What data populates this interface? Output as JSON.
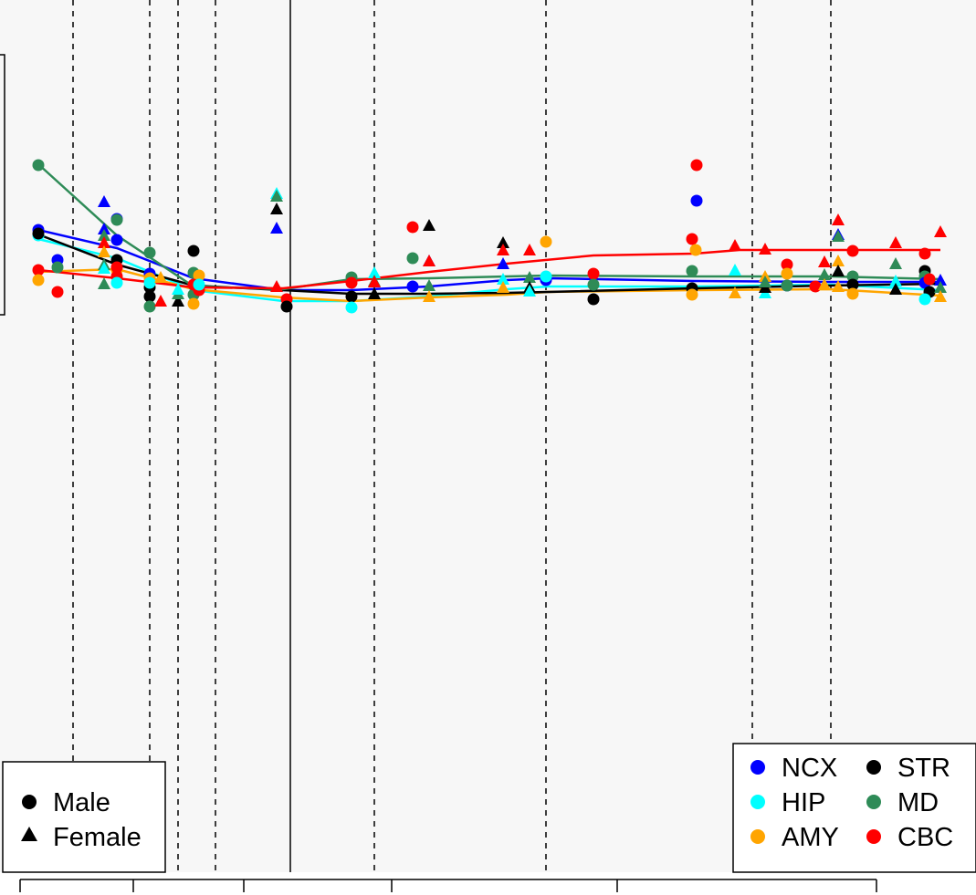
{
  "chart_data": {
    "type": "scatter",
    "title": "",
    "xlabel": "",
    "ylabel": "",
    "grid": false,
    "background": "#f7f7f7",
    "x_divider_positions": [
      80,
      164,
      195,
      236,
      410,
      598,
      824,
      910
    ],
    "x_solid_line": 318,
    "x_axis_ticks": [
      22,
      146,
      267,
      429,
      676,
      960
    ],
    "regions": [
      {
        "name": "NCX",
        "color": "#0000ff"
      },
      {
        "name": "HIP",
        "color": "#00ffff"
      },
      {
        "name": "AMY",
        "color": "#ffa500"
      },
      {
        "name": "STR",
        "color": "#000000"
      },
      {
        "name": "MD",
        "color": "#2e8b57"
      },
      {
        "name": "CBC",
        "color": "#ff0000"
      }
    ],
    "sexes": [
      {
        "name": "Male",
        "shape": "circle"
      },
      {
        "name": "Female",
        "shape": "triangle"
      }
    ],
    "trend_lines": [
      {
        "region": "NCX",
        "points": [
          [
            42,
            252
          ],
          [
            128,
            272
          ],
          [
            212,
            305
          ],
          [
            310,
            318
          ],
          [
            385,
            318
          ],
          [
            470,
            314
          ],
          [
            555,
            307
          ],
          [
            600,
            305
          ],
          [
            760,
            308
          ],
          [
            910,
            309
          ],
          [
            1030,
            309
          ]
        ]
      },
      {
        "region": "HIP",
        "points": [
          [
            42,
            262
          ],
          [
            128,
            283
          ],
          [
            212,
            318
          ],
          [
            310,
            330
          ],
          [
            385,
            330
          ],
          [
            470,
            325
          ],
          [
            555,
            317
          ],
          [
            600,
            314
          ],
          [
            760,
            314
          ],
          [
            910,
            312
          ],
          [
            1030,
            318
          ]
        ]
      },
      {
        "region": "AMY",
        "points": [
          [
            42,
            298
          ],
          [
            128,
            295
          ],
          [
            212,
            317
          ],
          [
            310,
            326
          ],
          [
            385,
            330
          ],
          [
            470,
            326
          ],
          [
            555,
            323
          ],
          [
            600,
            320
          ],
          [
            760,
            318
          ],
          [
            910,
            317
          ],
          [
            1030,
            324
          ]
        ]
      },
      {
        "region": "STR",
        "points": [
          [
            42,
            257
          ],
          [
            128,
            290
          ],
          [
            212,
            313
          ],
          [
            310,
            318
          ],
          [
            385,
            322
          ],
          [
            470,
            322
          ],
          [
            555,
            321
          ],
          [
            600,
            320
          ],
          [
            760,
            316
          ],
          [
            910,
            313
          ],
          [
            1030,
            311
          ]
        ]
      },
      {
        "region": "MD",
        "points": [
          [
            42,
            180
          ],
          [
            128,
            258
          ],
          [
            212,
            314
          ],
          [
            310,
            317
          ],
          [
            385,
            306
          ],
          [
            470,
            305
          ],
          [
            555,
            303
          ],
          [
            600,
            302
          ],
          [
            760,
            303
          ],
          [
            910,
            303
          ],
          [
            1030,
            306
          ]
        ]
      },
      {
        "region": "CBC",
        "points": [
          [
            42,
            296
          ],
          [
            128,
            305
          ],
          [
            212,
            315
          ],
          [
            310,
            316
          ],
          [
            385,
            308
          ],
          [
            470,
            298
          ],
          [
            555,
            289
          ],
          [
            650,
            280
          ],
          [
            760,
            278
          ],
          [
            810,
            274
          ],
          [
            1030,
            274
          ]
        ]
      }
    ],
    "points": [
      {
        "region": "MD",
        "sex": "Male",
        "x": 42,
        "y": 181
      },
      {
        "region": "NCX",
        "sex": "Male",
        "x": 42,
        "y": 252
      },
      {
        "region": "HIP",
        "sex": "Male",
        "x": 42,
        "y": 258
      },
      {
        "region": "STR",
        "sex": "Male",
        "x": 42,
        "y": 256
      },
      {
        "region": "CBC",
        "sex": "Male",
        "x": 42,
        "y": 296
      },
      {
        "region": "AMY",
        "sex": "Male",
        "x": 42,
        "y": 307
      },
      {
        "region": "NCX",
        "sex": "Male",
        "x": 63,
        "y": 285
      },
      {
        "region": "MD",
        "sex": "Male",
        "x": 63,
        "y": 293
      },
      {
        "region": "CBC",
        "sex": "Male",
        "x": 63,
        "y": 320
      },
      {
        "region": "NCX",
        "sex": "Female",
        "x": 114,
        "y": 222
      },
      {
        "region": "NCX",
        "sex": "Female",
        "x": 114,
        "y": 252
      },
      {
        "region": "MD",
        "sex": "Female",
        "x": 114,
        "y": 259
      },
      {
        "region": "CBC",
        "sex": "Female",
        "x": 114,
        "y": 267
      },
      {
        "region": "AMY",
        "sex": "Female",
        "x": 114,
        "y": 277
      },
      {
        "region": "MD",
        "sex": "Female",
        "x": 114,
        "y": 291
      },
      {
        "region": "HIP",
        "sex": "Female",
        "x": 114,
        "y": 295
      },
      {
        "region": "MD",
        "sex": "Female",
        "x": 114,
        "y": 312
      },
      {
        "region": "NCX",
        "sex": "Male",
        "x": 128,
        "y": 240
      },
      {
        "region": "MD",
        "sex": "Male",
        "x": 128,
        "y": 241
      },
      {
        "region": "NCX",
        "sex": "Male",
        "x": 128,
        "y": 263
      },
      {
        "region": "STR",
        "sex": "Male",
        "x": 128,
        "y": 285
      },
      {
        "region": "AMY",
        "sex": "Male",
        "x": 128,
        "y": 296
      },
      {
        "region": "CBC",
        "sex": "Male",
        "x": 128,
        "y": 303
      },
      {
        "region": "HIP",
        "sex": "Male",
        "x": 128,
        "y": 310
      },
      {
        "region": "CBC",
        "sex": "Male",
        "x": 128,
        "y": 293
      },
      {
        "region": "MD",
        "sex": "Male",
        "x": 164,
        "y": 277
      },
      {
        "region": "NCX",
        "sex": "Male",
        "x": 164,
        "y": 300
      },
      {
        "region": "STR",
        "sex": "Male",
        "x": 164,
        "y": 315
      },
      {
        "region": "STR",
        "sex": "Male",
        "x": 164,
        "y": 325
      },
      {
        "region": "MD",
        "sex": "Male",
        "x": 164,
        "y": 336
      },
      {
        "region": "AMY",
        "sex": "Male",
        "x": 164,
        "y": 305
      },
      {
        "region": "HIP",
        "sex": "Male",
        "x": 164,
        "y": 310
      },
      {
        "region": "CBC",
        "sex": "Female",
        "x": 176,
        "y": 331
      },
      {
        "region": "AMY",
        "sex": "Female",
        "x": 176,
        "y": 305
      },
      {
        "region": "STR",
        "sex": "Female",
        "x": 195,
        "y": 331
      },
      {
        "region": "MD",
        "sex": "Female",
        "x": 195,
        "y": 323
      },
      {
        "region": "HIP",
        "sex": "Female",
        "x": 195,
        "y": 318
      },
      {
        "region": "STR",
        "sex": "Male",
        "x": 212,
        "y": 275
      },
      {
        "region": "MD",
        "sex": "Male",
        "x": 212,
        "y": 299
      },
      {
        "region": "AMY",
        "sex": "Male",
        "x": 218,
        "y": 302
      },
      {
        "region": "MD",
        "sex": "Male",
        "x": 212,
        "y": 323
      },
      {
        "region": "AMY",
        "sex": "Male",
        "x": 212,
        "y": 333
      },
      {
        "region": "CBC",
        "sex": "Male",
        "x": 212,
        "y": 312
      },
      {
        "region": "CBC",
        "sex": "Male",
        "x": 218,
        "y": 318
      },
      {
        "region": "HIP",
        "sex": "Male",
        "x": 218,
        "y": 312
      },
      {
        "region": "HIP",
        "sex": "Female",
        "x": 303,
        "y": 213
      },
      {
        "region": "MD",
        "sex": "Female",
        "x": 303,
        "y": 216
      },
      {
        "region": "STR",
        "sex": "Female",
        "x": 303,
        "y": 230
      },
      {
        "region": "NCX",
        "sex": "Female",
        "x": 303,
        "y": 251
      },
      {
        "region": "CBC",
        "sex": "Female",
        "x": 303,
        "y": 315
      },
      {
        "region": "CBC",
        "sex": "Male",
        "x": 314,
        "y": 328
      },
      {
        "region": "STR",
        "sex": "Male",
        "x": 314,
        "y": 336
      },
      {
        "region": "MD",
        "sex": "Male",
        "x": 385,
        "y": 304
      },
      {
        "region": "CBC",
        "sex": "Male",
        "x": 385,
        "y": 310
      },
      {
        "region": "STR",
        "sex": "Male",
        "x": 385,
        "y": 325
      },
      {
        "region": "HIP",
        "sex": "Male",
        "x": 385,
        "y": 337
      },
      {
        "region": "HIP",
        "sex": "Female",
        "x": 410,
        "y": 300
      },
      {
        "region": "MD",
        "sex": "Female",
        "x": 410,
        "y": 309
      },
      {
        "region": "STR",
        "sex": "Female",
        "x": 410,
        "y": 323
      },
      {
        "region": "CBC",
        "sex": "Female",
        "x": 410,
        "y": 310
      },
      {
        "region": "CBC",
        "sex": "Male",
        "x": 452,
        "y": 249
      },
      {
        "region": "MD",
        "sex": "Male",
        "x": 452,
        "y": 283
      },
      {
        "region": "NCX",
        "sex": "Male",
        "x": 452,
        "y": 314
      },
      {
        "region": "STR",
        "sex": "Female",
        "x": 470,
        "y": 248
      },
      {
        "region": "NCX",
        "sex": "Female",
        "x": 470,
        "y": 287
      },
      {
        "region": "CBC",
        "sex": "Female",
        "x": 470,
        "y": 287
      },
      {
        "region": "MD",
        "sex": "Female",
        "x": 470,
        "y": 314
      },
      {
        "region": "AMY",
        "sex": "Female",
        "x": 470,
        "y": 326
      },
      {
        "region": "STR",
        "sex": "Female",
        "x": 551,
        "y": 267
      },
      {
        "region": "CBC",
        "sex": "Female",
        "x": 551,
        "y": 275
      },
      {
        "region": "NCX",
        "sex": "Female",
        "x": 551,
        "y": 290
      },
      {
        "region": "HIP",
        "sex": "Female",
        "x": 551,
        "y": 307
      },
      {
        "region": "AMY",
        "sex": "Female",
        "x": 551,
        "y": 316
      },
      {
        "region": "CBC",
        "sex": "Female",
        "x": 580,
        "y": 275
      },
      {
        "region": "MD",
        "sex": "Female",
        "x": 580,
        "y": 305
      },
      {
        "region": "STR",
        "sex": "Female",
        "x": 580,
        "y": 316
      },
      {
        "region": "HIP",
        "sex": "Female",
        "x": 580,
        "y": 320
      },
      {
        "region": "AMY",
        "sex": "Male",
        "x": 598,
        "y": 265
      },
      {
        "region": "NCX",
        "sex": "Male",
        "x": 598,
        "y": 307
      },
      {
        "region": "HIP",
        "sex": "Male",
        "x": 598,
        "y": 303
      },
      {
        "region": "CBC",
        "sex": "Male",
        "x": 650,
        "y": 300
      },
      {
        "region": "MD",
        "sex": "Male",
        "x": 650,
        "y": 312
      },
      {
        "region": "STR",
        "sex": "Male",
        "x": 650,
        "y": 328
      },
      {
        "region": "CBC",
        "sex": "Male",
        "x": 763,
        "y": 181
      },
      {
        "region": "NCX",
        "sex": "Male",
        "x": 763,
        "y": 220
      },
      {
        "region": "CBC",
        "sex": "Male",
        "x": 758,
        "y": 262
      },
      {
        "region": "AMY",
        "sex": "Male",
        "x": 762,
        "y": 274
      },
      {
        "region": "MD",
        "sex": "Male",
        "x": 758,
        "y": 297
      },
      {
        "region": "STR",
        "sex": "Male",
        "x": 758,
        "y": 316
      },
      {
        "region": "AMY",
        "sex": "Male",
        "x": 758,
        "y": 323
      },
      {
        "region": "CBC",
        "sex": "Female",
        "x": 805,
        "y": 270
      },
      {
        "region": "HIP",
        "sex": "Female",
        "x": 805,
        "y": 297
      },
      {
        "region": "AMY",
        "sex": "Female",
        "x": 805,
        "y": 322
      },
      {
        "region": "CBC",
        "sex": "Female",
        "x": 838,
        "y": 274
      },
      {
        "region": "AMY",
        "sex": "Female",
        "x": 838,
        "y": 304
      },
      {
        "region": "HIP",
        "sex": "Female",
        "x": 838,
        "y": 322
      },
      {
        "region": "STR",
        "sex": "Female",
        "x": 838,
        "y": 316
      },
      {
        "region": "MD",
        "sex": "Female",
        "x": 838,
        "y": 310
      },
      {
        "region": "CBC",
        "sex": "Male",
        "x": 862,
        "y": 290
      },
      {
        "region": "AMY",
        "sex": "Male",
        "x": 862,
        "y": 300
      },
      {
        "region": "NCX",
        "sex": "Male",
        "x": 862,
        "y": 313
      },
      {
        "region": "MD",
        "sex": "Male",
        "x": 862,
        "y": 313
      },
      {
        "region": "CBC",
        "sex": "Male",
        "x": 893,
        "y": 314
      },
      {
        "region": "CBC",
        "sex": "Female",
        "x": 903,
        "y": 288
      },
      {
        "region": "MD",
        "sex": "Female",
        "x": 903,
        "y": 302
      },
      {
        "region": "AMY",
        "sex": "Female",
        "x": 903,
        "y": 313
      },
      {
        "region": "CBC",
        "sex": "Female",
        "x": 918,
        "y": 242
      },
      {
        "region": "NCX",
        "sex": "Female",
        "x": 918,
        "y": 258
      },
      {
        "region": "MD",
        "sex": "Female",
        "x": 918,
        "y": 260
      },
      {
        "region": "AMY",
        "sex": "Female",
        "x": 918,
        "y": 287
      },
      {
        "region": "STR",
        "sex": "Female",
        "x": 918,
        "y": 298
      },
      {
        "region": "AMY",
        "sex": "Female",
        "x": 918,
        "y": 315
      },
      {
        "region": "CBC",
        "sex": "Male",
        "x": 934,
        "y": 275
      },
      {
        "region": "MD",
        "sex": "Male",
        "x": 934,
        "y": 303
      },
      {
        "region": "STR",
        "sex": "Male",
        "x": 934,
        "y": 312
      },
      {
        "region": "AMY",
        "sex": "Male",
        "x": 934,
        "y": 322
      },
      {
        "region": "CBC",
        "sex": "Female",
        "x": 981,
        "y": 267
      },
      {
        "region": "MD",
        "sex": "Female",
        "x": 981,
        "y": 290
      },
      {
        "region": "HIP",
        "sex": "Female",
        "x": 981,
        "y": 309
      },
      {
        "region": "STR",
        "sex": "Female",
        "x": 981,
        "y": 318
      },
      {
        "region": "CBC",
        "sex": "Male",
        "x": 1013,
        "y": 278
      },
      {
        "region": "STR",
        "sex": "Male",
        "x": 1013,
        "y": 297
      },
      {
        "region": "MD",
        "sex": "Male",
        "x": 1013,
        "y": 303
      },
      {
        "region": "NCX",
        "sex": "Male",
        "x": 1013,
        "y": 310
      },
      {
        "region": "CBC",
        "sex": "Male",
        "x": 1018,
        "y": 306
      },
      {
        "region": "STR",
        "sex": "Male",
        "x": 1018,
        "y": 320
      },
      {
        "region": "HIP",
        "sex": "Male",
        "x": 1013,
        "y": 328
      },
      {
        "region": "CBC",
        "sex": "Female",
        "x": 1030,
        "y": 255
      },
      {
        "region": "NCX",
        "sex": "Female",
        "x": 1030,
        "y": 308
      },
      {
        "region": "MD",
        "sex": "Female",
        "x": 1030,
        "y": 316
      },
      {
        "region": "AMY",
        "sex": "Female",
        "x": 1030,
        "y": 326
      }
    ]
  },
  "legends": {
    "sex": {
      "items": [
        {
          "label": "Male",
          "shape": "circle"
        },
        {
          "label": "Female",
          "shape": "triangle"
        }
      ]
    },
    "region": {
      "items": [
        {
          "label": "NCX",
          "color": "#0000ff"
        },
        {
          "label": "STR",
          "color": "#000000"
        },
        {
          "label": "HIP",
          "color": "#00ffff"
        },
        {
          "label": "MD",
          "color": "#2e8b57"
        },
        {
          "label": "AMY",
          "color": "#ffa500"
        },
        {
          "label": "CBC",
          "color": "#ff0000"
        }
      ]
    }
  }
}
